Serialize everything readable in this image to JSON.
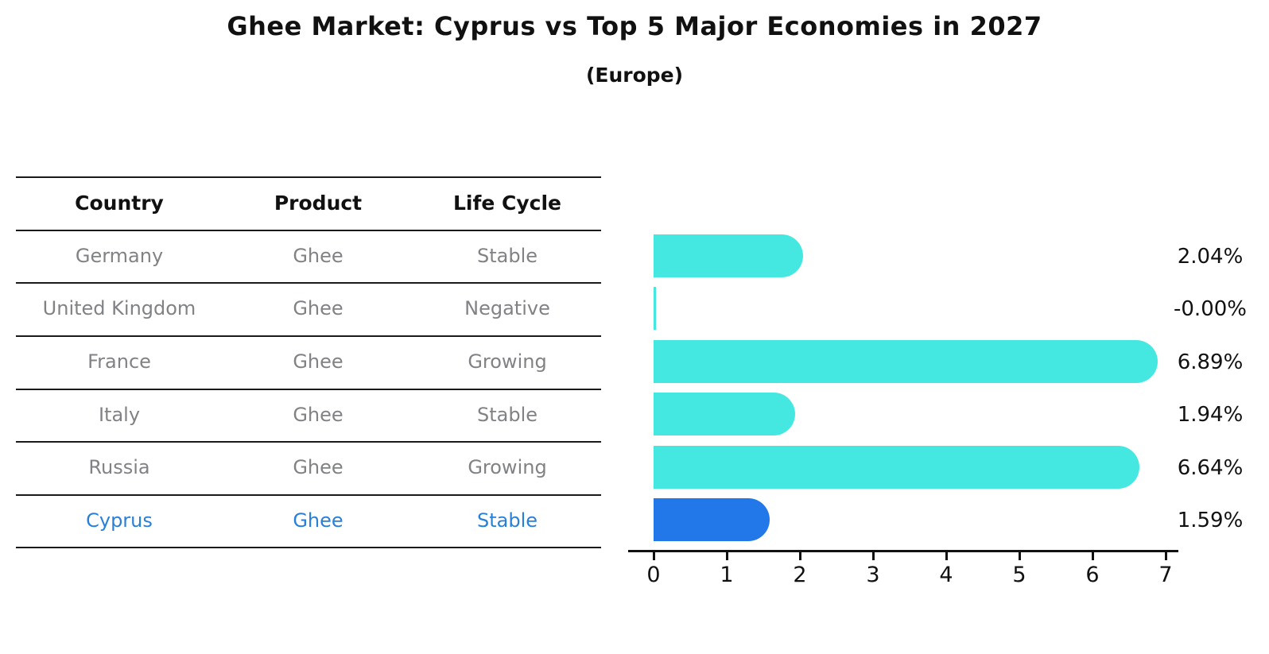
{
  "title": "Ghee Market: Cyprus vs Top 5 Major Economies in 2027",
  "subtitle": "(Europe)",
  "table": {
    "headers": {
      "country": "Country",
      "product": "Product",
      "life_cycle": "Life Cycle"
    },
    "rows": [
      {
        "country": "Germany",
        "product": "Ghee",
        "life_cycle": "Stable",
        "highlight": false
      },
      {
        "country": "United Kingdom",
        "product": "Ghee",
        "life_cycle": "Negative",
        "highlight": false
      },
      {
        "country": "France",
        "product": "Ghee",
        "life_cycle": "Growing",
        "highlight": false
      },
      {
        "country": "Italy",
        "product": "Ghee",
        "life_cycle": "Stable",
        "highlight": false
      },
      {
        "country": "Russia",
        "product": "Ghee",
        "life_cycle": "Growing",
        "highlight": false
      },
      {
        "country": "Cyprus",
        "product": "Ghee",
        "life_cycle": "Stable",
        "highlight": true
      }
    ]
  },
  "chart_data": {
    "type": "bar",
    "orientation": "horizontal",
    "title": "Ghee Market: Cyprus vs Top 5 Major Economies in 2027",
    "subtitle": "(Europe)",
    "categories": [
      "Germany",
      "United Kingdom",
      "France",
      "Italy",
      "Russia",
      "Cyprus"
    ],
    "values": [
      2.04,
      -0.0,
      6.89,
      1.94,
      6.64,
      1.59
    ],
    "value_labels": [
      "2.04%",
      "-0.00%",
      "6.89%",
      "1.94%",
      "6.64%",
      "1.59%"
    ],
    "xticks": [
      "0",
      "1",
      "2",
      "3",
      "4",
      "5",
      "6",
      "7"
    ],
    "xlim": [
      0,
      7.3
    ],
    "grid": false,
    "legend": "none",
    "bar_color": "#45e8e1",
    "highlight_color": "#2278e8",
    "highlight_index": 5
  },
  "colors": {
    "bar_cyan": "#45e8e1",
    "bar_blue": "#2278e8",
    "highlight_text": "#2980d9",
    "table_text": "#808285",
    "axis": "#111111"
  }
}
